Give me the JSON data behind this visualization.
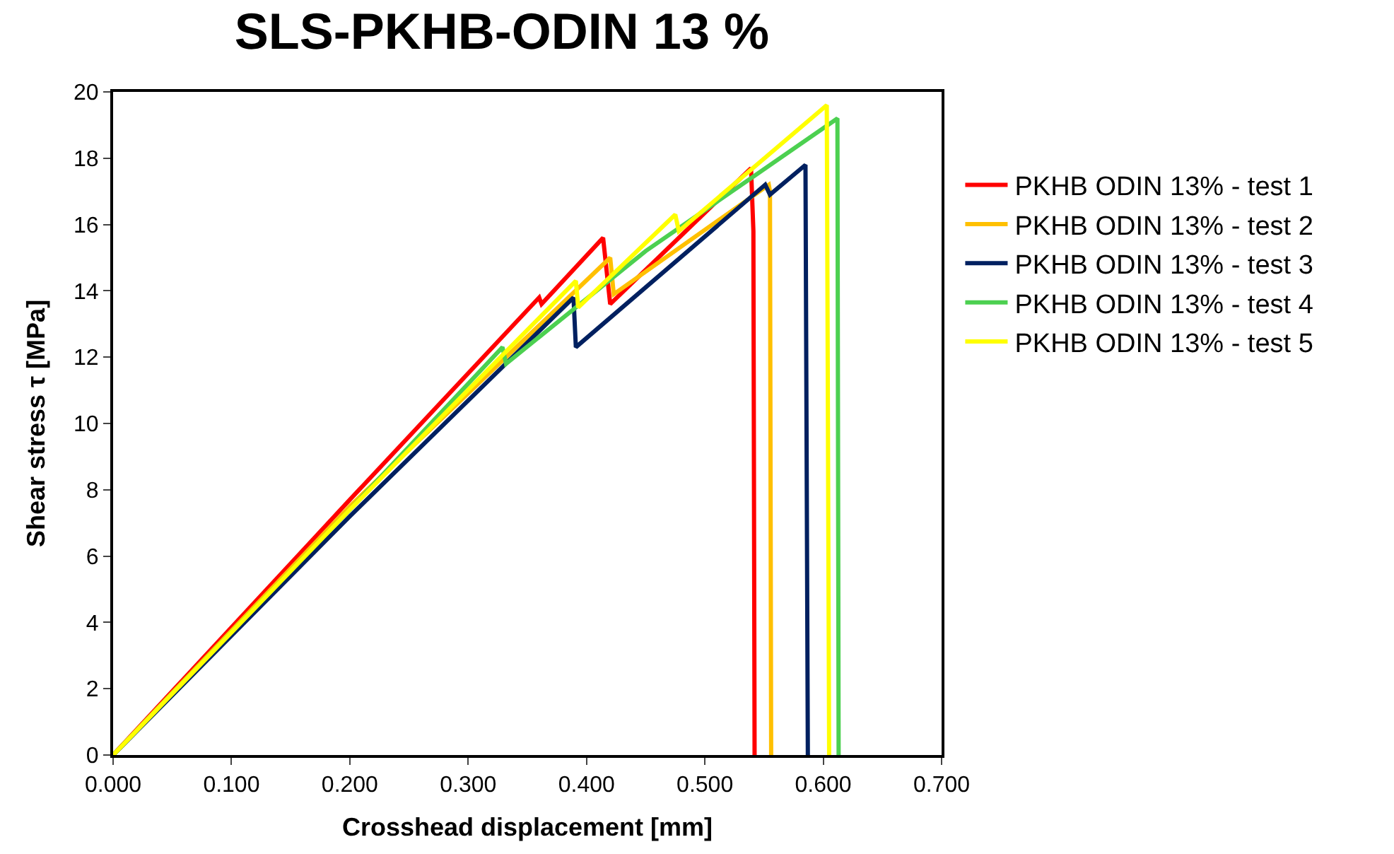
{
  "chart_data": {
    "type": "line",
    "title": "SLS-PKHB-ODIN 13 %",
    "xlabel": "Crosshead displacement [mm]",
    "ylabel": "Shear stress τ [MPa]",
    "xlim": [
      0,
      0.7
    ],
    "xticks": [
      {
        "value": 0,
        "label": "0.000"
      },
      {
        "value": 0.1,
        "label": "0.100"
      },
      {
        "value": 0.2,
        "label": "0.200"
      },
      {
        "value": 0.3,
        "label": "0.300"
      },
      {
        "value": 0.4,
        "label": "0.400"
      },
      {
        "value": 0.5,
        "label": "0.500"
      },
      {
        "value": 0.6,
        "label": "0.600"
      },
      {
        "value": 0.7,
        "label": "0.700"
      }
    ],
    "ylim": [
      0,
      20
    ],
    "yticks": [
      0,
      2,
      4,
      6,
      8,
      10,
      12,
      14,
      16,
      18,
      20
    ],
    "legend": "right",
    "marker": "none",
    "line_style": "solid",
    "series": [
      {
        "name": "PKHB ODIN 13% - test 1",
        "color": "#ff0000",
        "x": [
          0,
          0.2,
          0.36,
          0.362,
          0.414,
          0.42,
          0.539,
          0.541,
          0.542
        ],
        "values": [
          0,
          7.7,
          13.8,
          13.6,
          15.6,
          13.6,
          17.7,
          15.8,
          0
        ]
      },
      {
        "name": "PKHB ODIN 13% - test 2",
        "color": "#ffc000",
        "x": [
          0,
          0.2,
          0.42,
          0.423,
          0.554,
          0.555,
          0.556
        ],
        "values": [
          0,
          7.5,
          15.0,
          13.9,
          17.2,
          17.0,
          0
        ]
      },
      {
        "name": "PKHB ODIN 13% - test 3",
        "color": "#002060",
        "x": [
          0,
          0.2,
          0.389,
          0.391,
          0.551,
          0.555,
          0.585,
          0.587
        ],
        "values": [
          0,
          7.2,
          13.8,
          12.3,
          17.2,
          16.9,
          17.8,
          0
        ]
      },
      {
        "name": "PKHB ODIN 13% - test 4",
        "color": "#4cd050",
        "x": [
          0,
          0.2,
          0.329,
          0.332,
          0.45,
          0.612,
          0.613
        ],
        "values": [
          0,
          7.4,
          12.3,
          11.8,
          15.2,
          19.2,
          0
        ]
      },
      {
        "name": "PKHB ODIN 13% - test 5",
        "color": "#ffff00",
        "x": [
          0,
          0.2,
          0.391,
          0.393,
          0.475,
          0.478,
          0.603,
          0.605
        ],
        "values": [
          0,
          7.4,
          14.3,
          13.5,
          16.3,
          15.8,
          19.6,
          0
        ]
      }
    ]
  }
}
